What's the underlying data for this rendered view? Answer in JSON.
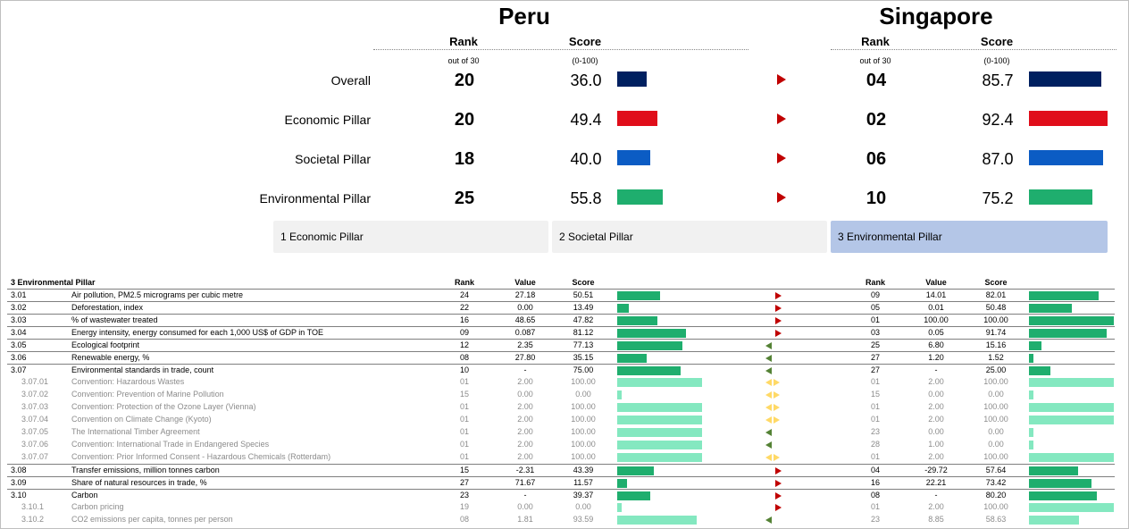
{
  "left_country": "Peru",
  "right_country": "Singapore",
  "headers": {
    "rank": "Rank",
    "score": "Score",
    "rank_sub": "out of 30",
    "score_sub": "(0-100)"
  },
  "colors": {
    "Overall": "#002060",
    "Economic": "#e00d1a",
    "Societal": "#0b5cc4",
    "Environmental": "#1fae6e",
    "sub_bar": "#84e8c0",
    "arrow_red": "#c00000",
    "arrow_green": "#548235",
    "arrow_yellow": "#ffd966"
  },
  "summary": [
    {
      "label": "Overall",
      "l_rank": "20",
      "l_score": "36.0",
      "r_rank": "04",
      "r_score": "85.7",
      "color": "Overall"
    },
    {
      "label": "Economic Pillar",
      "l_rank": "20",
      "l_score": "49.4",
      "r_rank": "02",
      "r_score": "92.4",
      "color": "Economic"
    },
    {
      "label": "Societal Pillar",
      "l_rank": "18",
      "l_score": "40.0",
      "r_rank": "06",
      "r_score": "87.0",
      "color": "Societal"
    },
    {
      "label": "Environmental Pillar",
      "l_rank": "25",
      "l_score": "55.8",
      "r_rank": "10",
      "r_score": "75.2",
      "color": "Environmental"
    }
  ],
  "tabs": [
    {
      "label": "1 Economic Pillar",
      "active": false
    },
    {
      "label": "2 Societal Pillar",
      "active": false
    },
    {
      "label": "3 Environmental Pillar",
      "active": true
    }
  ],
  "detail": {
    "section_title": "3 Environmental Pillar",
    "col_rank": "Rank",
    "col_value": "Value",
    "col_score": "Score",
    "rows": [
      {
        "code": "3.01",
        "name": "Air pollution, PM2.5 micrograms per cubic metre",
        "l_rank": "24",
        "l_value": "27.18",
        "l_score": "50.51",
        "arrow": "right",
        "r_rank": "09",
        "r_value": "14.01",
        "r_score": "82.01",
        "sub": false,
        "sep": true
      },
      {
        "code": "3.02",
        "name": "Deforestation, index",
        "l_rank": "22",
        "l_value": "0.00",
        "l_score": "13.49",
        "arrow": "right",
        "r_rank": "05",
        "r_value": "0.01",
        "r_score": "50.48",
        "sub": false,
        "sep": true
      },
      {
        "code": "3.03",
        "name": "% of wastewater treated",
        "l_rank": "16",
        "l_value": "48.65",
        "l_score": "47.82",
        "arrow": "right",
        "r_rank": "01",
        "r_value": "100.00",
        "r_score": "100.00",
        "sub": false,
        "sep": true
      },
      {
        "code": "3.04",
        "name": "Energy intensity, energy consumed for each 1,000 US$ of GDP in TOE",
        "l_rank": "09",
        "l_value": "0.087",
        "l_score": "81.12",
        "arrow": "right",
        "r_rank": "03",
        "r_value": "0.05",
        "r_score": "91.74",
        "sub": false,
        "sep": true
      },
      {
        "code": "3.05",
        "name": "Ecological footprint",
        "l_rank": "12",
        "l_value": "2.35",
        "l_score": "77.13",
        "arrow": "left",
        "r_rank": "25",
        "r_value": "6.80",
        "r_score": "15.16",
        "sub": false,
        "sep": true
      },
      {
        "code": "3.06",
        "name": "Renewable energy, %",
        "l_rank": "08",
        "l_value": "27.80",
        "l_score": "35.15",
        "arrow": "left",
        "r_rank": "27",
        "r_value": "1.20",
        "r_score": "1.52",
        "sub": false,
        "sep": true
      },
      {
        "code": "3.07",
        "name": "Environmental standards in trade, count",
        "l_rank": "10",
        "l_value": "-",
        "l_score": "75.00",
        "arrow": "left",
        "r_rank": "27",
        "r_value": "-",
        "r_score": "25.00",
        "sub": false,
        "sep": true
      },
      {
        "code": "3.07.01",
        "name": "Convention: Hazardous Wastes",
        "l_rank": "01",
        "l_value": "2.00",
        "l_score": "100.00",
        "arrow": "both",
        "r_rank": "01",
        "r_value": "2.00",
        "r_score": "100.00",
        "sub": true,
        "sep": false
      },
      {
        "code": "3.07.02",
        "name": "Convention: Prevention of Marine Pollution",
        "l_rank": "15",
        "l_value": "0.00",
        "l_score": "0.00",
        "arrow": "both",
        "r_rank": "15",
        "r_value": "0.00",
        "r_score": "0.00",
        "sub": true,
        "sep": false
      },
      {
        "code": "3.07.03",
        "name": "Convention: Protection of the Ozone Layer (Vienna)",
        "l_rank": "01",
        "l_value": "2.00",
        "l_score": "100.00",
        "arrow": "both",
        "r_rank": "01",
        "r_value": "2.00",
        "r_score": "100.00",
        "sub": true,
        "sep": false
      },
      {
        "code": "3.07.04",
        "name": "Convention on Climate Change (Kyoto)",
        "l_rank": "01",
        "l_value": "2.00",
        "l_score": "100.00",
        "arrow": "both",
        "r_rank": "01",
        "r_value": "2.00",
        "r_score": "100.00",
        "sub": true,
        "sep": false
      },
      {
        "code": "3.07.05",
        "name": "The International Timber Agreement",
        "l_rank": "01",
        "l_value": "2.00",
        "l_score": "100.00",
        "arrow": "left",
        "r_rank": "23",
        "r_value": "0.00",
        "r_score": "0.00",
        "sub": true,
        "sep": false
      },
      {
        "code": "3.07.06",
        "name": "Convention: International Trade in Endangered Species",
        "l_rank": "01",
        "l_value": "2.00",
        "l_score": "100.00",
        "arrow": "left",
        "r_rank": "28",
        "r_value": "1.00",
        "r_score": "0.00",
        "sub": true,
        "sep": false
      },
      {
        "code": "3.07.07",
        "name": "Convention: Prior Informed Consent - Hazardous Chemicals (Rotterdam)",
        "l_rank": "01",
        "l_value": "2.00",
        "l_score": "100.00",
        "arrow": "both",
        "r_rank": "01",
        "r_value": "2.00",
        "r_score": "100.00",
        "sub": true,
        "sep": false
      },
      {
        "code": "3.08",
        "name": "Transfer emissions, million tonnes carbon",
        "l_rank": "15",
        "l_value": "-2.31",
        "l_score": "43.39",
        "arrow": "right",
        "r_rank": "04",
        "r_value": "-29.72",
        "r_score": "57.64",
        "sub": false,
        "sep": true
      },
      {
        "code": "3.09",
        "name": "Share of natural resources in trade, %",
        "l_rank": "27",
        "l_value": "71.67",
        "l_score": "11.57",
        "arrow": "right",
        "r_rank": "16",
        "r_value": "22.21",
        "r_score": "73.42",
        "sub": false,
        "sep": true
      },
      {
        "code": "3.10",
        "name": "Carbon",
        "l_rank": "23",
        "l_value": "-",
        "l_score": "39.37",
        "arrow": "right",
        "r_rank": "08",
        "r_value": "-",
        "r_score": "80.20",
        "sub": false,
        "sep": true
      },
      {
        "code": "3.10.1",
        "name": "Carbon pricing",
        "l_rank": "19",
        "l_value": "0.00",
        "l_score": "0.00",
        "arrow": "right",
        "r_rank": "01",
        "r_value": "2.00",
        "r_score": "100.00",
        "sub": true,
        "sep": false
      },
      {
        "code": "3.10.2",
        "name": "CO2 emissions per capita, tonnes per person",
        "l_rank": "08",
        "l_value": "1.81",
        "l_score": "93.59",
        "arrow": "left",
        "r_rank": "23",
        "r_value": "8.85",
        "r_score": "58.63",
        "sub": true,
        "sep": false
      }
    ]
  }
}
